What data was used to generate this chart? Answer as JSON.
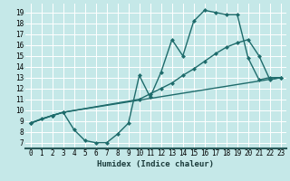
{
  "xlabel": "Humidex (Indice chaleur)",
  "bg_color": "#c5e8e8",
  "line_color": "#1e6b6b",
  "markersize": 2.5,
  "linewidth": 1.0,
  "xlim": [
    -0.5,
    23.5
  ],
  "ylim": [
    6.5,
    19.8
  ],
  "xticks": [
    0,
    1,
    2,
    3,
    4,
    5,
    6,
    7,
    8,
    9,
    10,
    11,
    12,
    13,
    14,
    15,
    16,
    17,
    18,
    19,
    20,
    21,
    22,
    23
  ],
  "yticks": [
    7,
    8,
    9,
    10,
    11,
    12,
    13,
    14,
    15,
    16,
    17,
    18,
    19
  ],
  "line1_x": [
    0,
    1,
    2,
    3,
    4,
    5,
    6,
    7,
    8,
    9,
    10,
    11,
    12,
    13,
    14,
    15,
    16,
    17,
    18,
    19,
    20,
    21,
    22,
    23
  ],
  "line1_y": [
    8.8,
    9.2,
    9.5,
    9.8,
    8.2,
    7.2,
    7.0,
    7.0,
    7.8,
    8.8,
    13.2,
    11.2,
    13.5,
    16.5,
    15.0,
    18.2,
    19.2,
    19.0,
    18.8,
    18.8,
    14.8,
    12.8,
    13.0,
    13.0
  ],
  "line2_x": [
    0,
    2,
    3,
    10,
    11,
    12,
    13,
    14,
    15,
    16,
    17,
    18,
    19,
    20,
    21,
    22,
    23
  ],
  "line2_y": [
    8.8,
    9.5,
    9.8,
    11.0,
    11.5,
    12.0,
    12.5,
    13.2,
    13.8,
    14.5,
    15.2,
    15.8,
    16.2,
    16.5,
    15.0,
    12.8,
    13.0
  ],
  "line3_x": [
    0,
    2,
    3,
    23
  ],
  "line3_y": [
    8.8,
    9.5,
    9.8,
    13.0
  ],
  "grid_color": "#b0d8d8",
  "tick_fontsize": 5.5,
  "label_fontsize": 6.5
}
